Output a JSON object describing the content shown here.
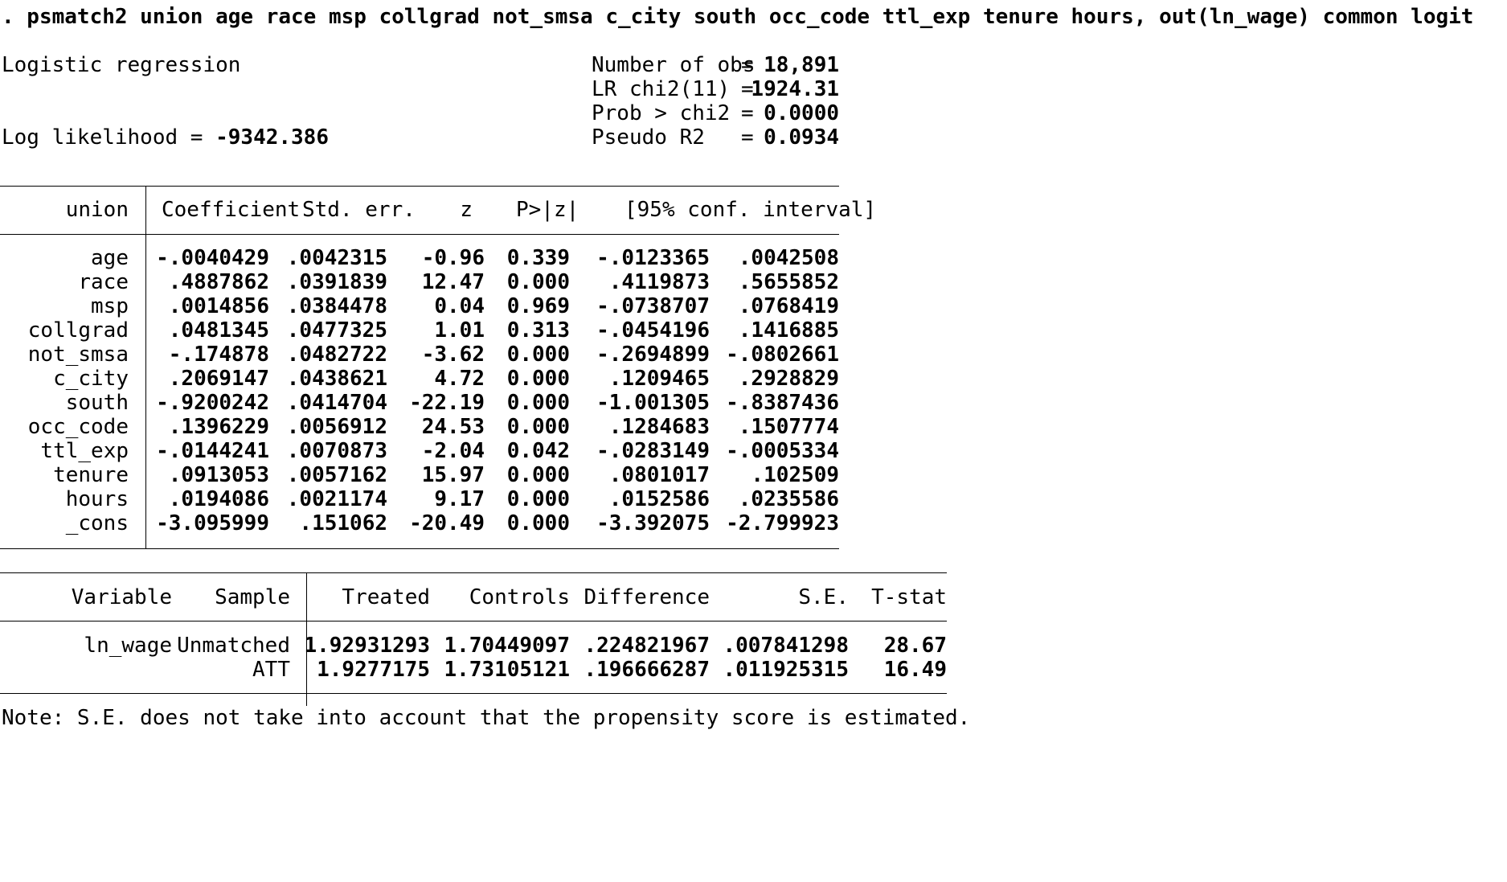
{
  "command": ". psmatch2 union age race msp collgrad not_smsa c_city south occ_code ttl_exp tenure hours, out(ln_wage) common logit",
  "model": {
    "title": "Logistic regression",
    "loglik_label": "Log likelihood =",
    "loglik_value": "-9342.386",
    "stats": [
      {
        "label": "Number of obs",
        "eq": "=",
        "value": "18,891"
      },
      {
        "label": "LR chi2(11)",
        "eq": "=",
        "value": "1924.31"
      },
      {
        "label": "Prob > chi2",
        "eq": "=",
        "value": "0.0000"
      },
      {
        "label": "Pseudo R2",
        "eq": "=",
        "value": "0.0934"
      }
    ]
  },
  "coef_table": {
    "depvar": "union",
    "headers": [
      "Coefficient",
      "Std. err.",
      "z",
      "P>|z|",
      "[95% conf. interval]"
    ],
    "rows": [
      {
        "var": "age",
        "coef": "-.0040429",
        "se": ".0042315",
        "z": "-0.96",
        "p": "0.339",
        "lo": "-.0123365",
        "hi": ".0042508"
      },
      {
        "var": "race",
        "coef": ".4887862",
        "se": ".0391839",
        "z": "12.47",
        "p": "0.000",
        "lo": ".4119873",
        "hi": ".5655852"
      },
      {
        "var": "msp",
        "coef": ".0014856",
        "se": ".0384478",
        "z": "0.04",
        "p": "0.969",
        "lo": "-.0738707",
        "hi": ".0768419"
      },
      {
        "var": "collgrad",
        "coef": ".0481345",
        "se": ".0477325",
        "z": "1.01",
        "p": "0.313",
        "lo": "-.0454196",
        "hi": ".1416885"
      },
      {
        "var": "not_smsa",
        "coef": "-.174878",
        "se": ".0482722",
        "z": "-3.62",
        "p": "0.000",
        "lo": "-.2694899",
        "hi": "-.0802661"
      },
      {
        "var": "c_city",
        "coef": ".2069147",
        "se": ".0438621",
        "z": "4.72",
        "p": "0.000",
        "lo": ".1209465",
        "hi": ".2928829"
      },
      {
        "var": "south",
        "coef": "-.9200242",
        "se": ".0414704",
        "z": "-22.19",
        "p": "0.000",
        "lo": "-1.001305",
        "hi": "-.8387436"
      },
      {
        "var": "occ_code",
        "coef": ".1396229",
        "se": ".0056912",
        "z": "24.53",
        "p": "0.000",
        "lo": ".1284683",
        "hi": ".1507774"
      },
      {
        "var": "ttl_exp",
        "coef": "-.0144241",
        "se": ".0070873",
        "z": "-2.04",
        "p": "0.042",
        "lo": "-.0283149",
        "hi": "-.0005334"
      },
      {
        "var": "tenure",
        "coef": ".0913053",
        "se": ".0057162",
        "z": "15.97",
        "p": "0.000",
        "lo": ".0801017",
        "hi": ".102509"
      },
      {
        "var": "hours",
        "coef": ".0194086",
        "se": ".0021174",
        "z": "9.17",
        "p": "0.000",
        "lo": ".0152586",
        "hi": ".0235586"
      },
      {
        "var": "_cons",
        "coef": "-3.095999",
        "se": ".151062",
        "z": "-20.49",
        "p": "0.000",
        "lo": "-3.392075",
        "hi": "-2.799923"
      }
    ]
  },
  "att_table": {
    "headers": {
      "variable": "Variable",
      "sample": "Sample",
      "treated": "Treated",
      "controls": "Controls",
      "difference": "Difference",
      "se": "S.E.",
      "tstat": "T-stat"
    },
    "rows": [
      {
        "variable": "ln_wage",
        "sample": "Unmatched",
        "treated": "1.92931293",
        "controls": "1.70449097",
        "difference": ".224821967",
        "se": ".007841298",
        "tstat": "28.67"
      },
      {
        "variable": "",
        "sample": "ATT",
        "treated": "1.9277175",
        "controls": "1.73105121",
        "difference": ".196666287",
        "se": ".011925315",
        "tstat": "16.49"
      }
    ]
  },
  "note": "Note: S.E. does not take into account that the propensity score is estimated."
}
